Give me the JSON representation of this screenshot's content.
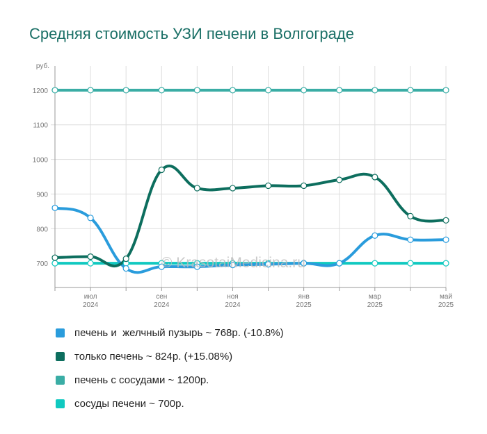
{
  "title": "Средняя стоимость УЗИ печени в Волгограде",
  "watermark": "© KrasotaiMedicina.ru",
  "chart_data": {
    "type": "line",
    "y_unit": "руб.",
    "ylim": [
      630,
      1270
    ],
    "yticks": [
      700,
      800,
      900,
      1000,
      1100,
      1200
    ],
    "grid": true,
    "x": [
      "2024-06",
      "2024-07",
      "2024-08",
      "2024-09",
      "2024-10",
      "2024-11",
      "2024-12",
      "2025-01",
      "2025-02",
      "2025-03",
      "2025-04",
      "2025-05"
    ],
    "x_tick_labels": [
      {
        "index": 1,
        "month": "июл",
        "year": "2024"
      },
      {
        "index": 3,
        "month": "сен",
        "year": "2024"
      },
      {
        "index": 5,
        "month": "ноя",
        "year": "2024"
      },
      {
        "index": 7,
        "month": "янв",
        "year": "2025"
      },
      {
        "index": 9,
        "month": "мар",
        "year": "2025"
      },
      {
        "index": 11,
        "month": "май",
        "year": "2025"
      }
    ],
    "series": [
      {
        "name": "печень и  желчный пузырь ~ 768р. (-10.8%)",
        "color": "#2a9cdc",
        "values": [
          860,
          831,
          685,
          690,
          690,
          695,
          697,
          700,
          700,
          780,
          768,
          768
        ]
      },
      {
        "name": "только печень ~ 824р. (+15.08%)",
        "color": "#0d6e5e",
        "values": [
          716,
          719,
          713,
          970,
          917,
          917,
          924,
          924,
          941,
          949,
          836,
          824
        ]
      },
      {
        "name": "печень с сосудами ~ 1200р.",
        "color": "#3aada5",
        "values": [
          1200,
          1200,
          1200,
          1200,
          1200,
          1200,
          1200,
          1200,
          1200,
          1200,
          1200,
          1200
        ]
      },
      {
        "name": "сосуды печени ~ 700р.",
        "color": "#10c9c0",
        "values": [
          700,
          700,
          700,
          700,
          700,
          700,
          700,
          700,
          700,
          700,
          700,
          700
        ]
      }
    ]
  }
}
